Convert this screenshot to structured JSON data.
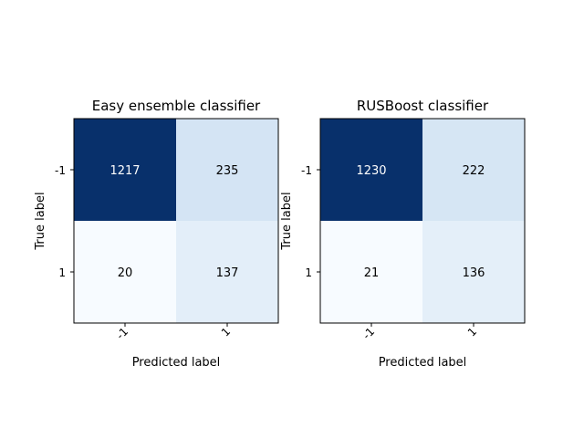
{
  "chart_data": [
    {
      "type": "heatmap",
      "title": "Easy ensemble classifier",
      "xlabel": "Predicted label",
      "ylabel": "True label",
      "x_categories": [
        "-1",
        "1"
      ],
      "y_categories": [
        "-1",
        "1"
      ],
      "values": [
        [
          1217,
          235
        ],
        [
          20,
          137
        ]
      ],
      "colormap": "Blues",
      "colors": {
        "low": "#f7fbff",
        "high": "#08306b"
      }
    },
    {
      "type": "heatmap",
      "title": "RUSBoost classifier",
      "xlabel": "Predicted label",
      "ylabel": "True label",
      "x_categories": [
        "-1",
        "1"
      ],
      "y_categories": [
        "-1",
        "1"
      ],
      "values": [
        [
          1230,
          222
        ],
        [
          21,
          136
        ]
      ],
      "colormap": "Blues",
      "colors": {
        "low": "#f7fbff",
        "high": "#08306b"
      }
    }
  ]
}
